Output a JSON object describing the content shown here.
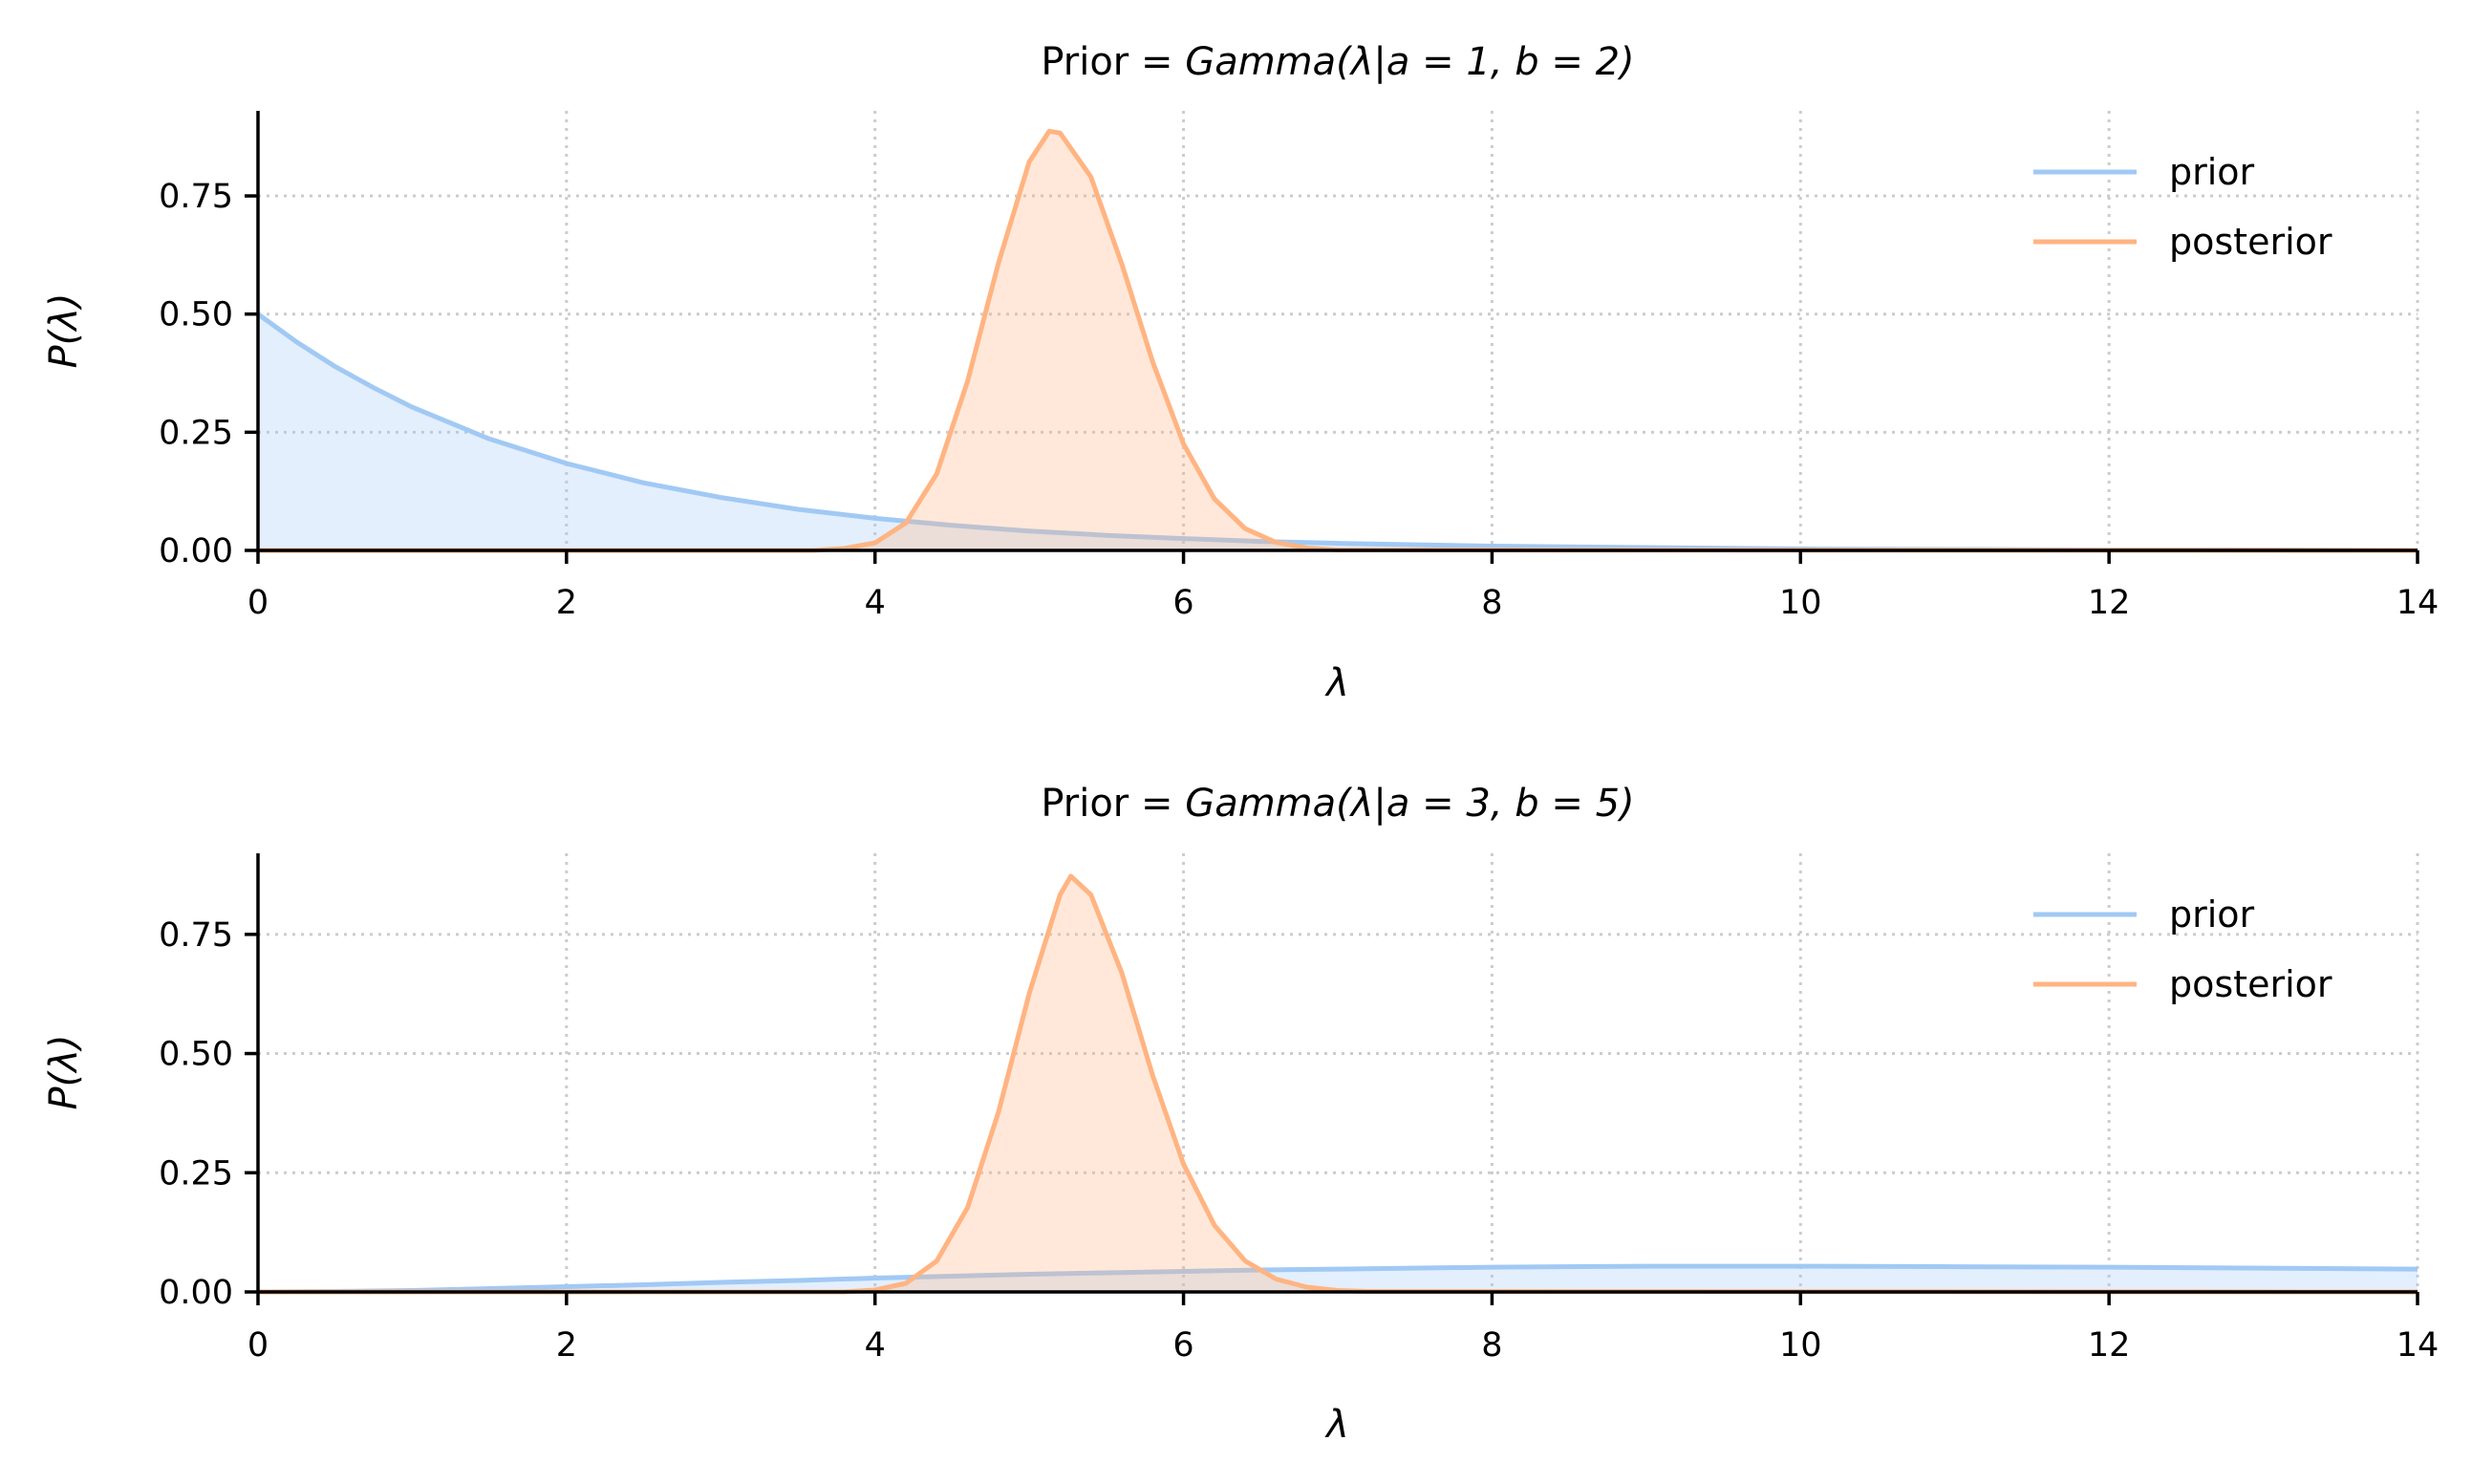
{
  "colors": {
    "prior": "#a1c9f4",
    "posterior": "#ffb482",
    "grid": "#cccccc",
    "axis": "#000000"
  },
  "chart_data": [
    {
      "type": "line",
      "title_prefix": "Prior = ",
      "title_math": "Gamma(λ|a = 1, b = 2)",
      "xlabel": "λ",
      "ylabel": "P(λ)",
      "xlim": [
        0,
        14
      ],
      "ylim": [
        0,
        0.93
      ],
      "x_ticks": [
        "0",
        "2",
        "4",
        "6",
        "8",
        "10",
        "12",
        "14"
      ],
      "y_ticks": [
        "0.00",
        "0.25",
        "0.50",
        "0.75"
      ],
      "grid": "dotted",
      "legend_position": "top-right",
      "series": [
        {
          "name": "prior",
          "x": [
            0,
            0.25,
            0.5,
            0.75,
            1,
            1.5,
            2,
            2.5,
            3,
            3.5,
            4,
            4.5,
            5,
            5.5,
            6,
            6.5,
            7,
            8,
            9,
            10,
            11,
            12,
            13,
            14
          ],
          "y": [
            0.5,
            0.441,
            0.389,
            0.344,
            0.303,
            0.236,
            0.184,
            0.143,
            0.112,
            0.087,
            0.068,
            0.053,
            0.041,
            0.032,
            0.025,
            0.019,
            0.015,
            0.009,
            0.006,
            0.003,
            0.002,
            0.001,
            0.001,
            0.0
          ]
        },
        {
          "name": "posterior",
          "x": [
            0,
            3.6,
            3.8,
            4.0,
            4.2,
            4.4,
            4.6,
            4.8,
            5.0,
            5.13,
            5.2,
            5.4,
            5.6,
            5.8,
            6.0,
            6.2,
            6.4,
            6.6,
            6.8,
            7.0,
            14
          ],
          "y": [
            0,
            0.0,
            0.004,
            0.016,
            0.058,
            0.162,
            0.358,
            0.608,
            0.822,
            0.887,
            0.883,
            0.79,
            0.606,
            0.399,
            0.225,
            0.109,
            0.046,
            0.017,
            0.005,
            0.001,
            0
          ]
        }
      ]
    },
    {
      "type": "line",
      "title_prefix": "Prior = ",
      "title_math": "Gamma(λ|a = 3, b = 5)",
      "xlabel": "λ",
      "ylabel": "P(λ)",
      "xlim": [
        0,
        14
      ],
      "ylim": [
        0,
        0.92
      ],
      "x_ticks": [
        "0",
        "2",
        "4",
        "6",
        "8",
        "10",
        "12",
        "14"
      ],
      "y_ticks": [
        "0.00",
        "0.25",
        "0.50",
        "0.75"
      ],
      "grid": "dotted",
      "legend_position": "top-right",
      "series": [
        {
          "name": "prior",
          "x": [
            0,
            0.5,
            1,
            1.5,
            2,
            2.5,
            3,
            3.5,
            4,
            4.5,
            5,
            5.5,
            6,
            6.5,
            7,
            8,
            9,
            10,
            11,
            12,
            13,
            14
          ],
          "y": [
            0,
            0.001,
            0.003,
            0.007,
            0.011,
            0.015,
            0.02,
            0.024,
            0.029,
            0.033,
            0.037,
            0.04,
            0.043,
            0.046,
            0.048,
            0.052,
            0.054,
            0.054,
            0.053,
            0.052,
            0.05,
            0.048
          ]
        },
        {
          "name": "posterior",
          "x": [
            0,
            3.8,
            4.0,
            4.2,
            4.4,
            4.6,
            4.8,
            5.0,
            5.2,
            5.27,
            5.4,
            5.6,
            5.8,
            6.0,
            6.2,
            6.4,
            6.6,
            6.8,
            7.0,
            7.2,
            14
          ],
          "y": [
            0,
            0.0,
            0.004,
            0.018,
            0.065,
            0.177,
            0.377,
            0.626,
            0.833,
            0.872,
            0.833,
            0.669,
            0.454,
            0.268,
            0.14,
            0.065,
            0.027,
            0.01,
            0.003,
            0.001,
            0
          ]
        }
      ]
    }
  ]
}
